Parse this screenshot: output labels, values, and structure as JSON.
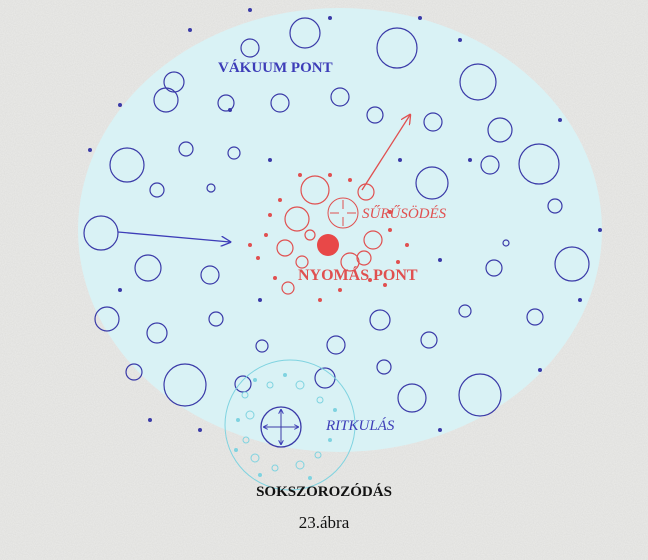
{
  "labels": {
    "vacuum": "VÁKUUM PONT",
    "condensation": "SŰRŰSÖDÉS",
    "pressure": "NYOMÁS PONT",
    "rarefaction": "RITKULÁS"
  },
  "caption": {
    "title": "SOKSZOROZÓDÁS",
    "figure": "23.ábra"
  }
}
